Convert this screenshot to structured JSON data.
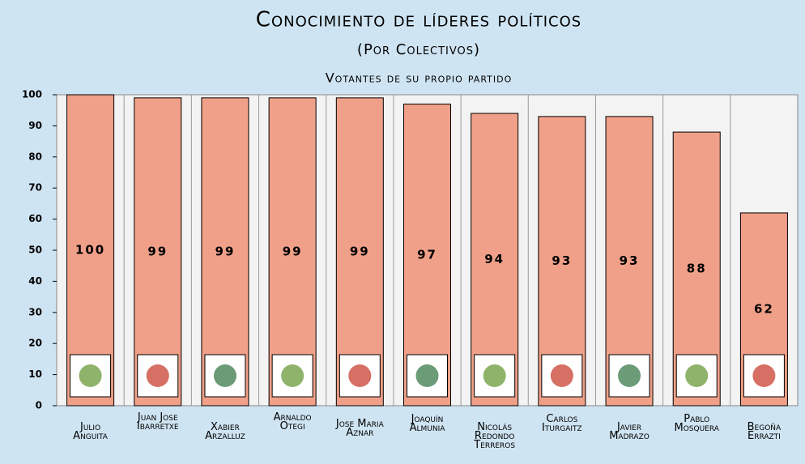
{
  "chart_data": {
    "type": "bar",
    "title": "Conocimiento de líderes políticos",
    "subtitle": "(Por Colectivos)",
    "annotation": "Votantes de su propio partido",
    "categories": [
      "Julio\nAnguita",
      "Juan Jose\nIbarretxe",
      "Xabier\nArzalluz",
      "Arnaldo\nOtegi",
      "Jose Maria\nAznar",
      "Joaquín\nAlmunia",
      "Nicolás\nRedondo\nTerreros",
      "Carlos\nIturgaitz",
      "Javier\nMadrazo",
      "Pablo\nMosquera",
      "Begoña\nErrazti"
    ],
    "values": [
      100,
      99,
      99,
      99,
      99,
      97,
      94,
      93,
      93,
      88,
      62
    ],
    "color": "#f0a088",
    "ylim": [
      0,
      100
    ],
    "yticks": [
      0,
      10,
      20,
      30,
      40,
      50,
      60,
      70,
      80,
      90,
      100
    ],
    "grid": true
  }
}
